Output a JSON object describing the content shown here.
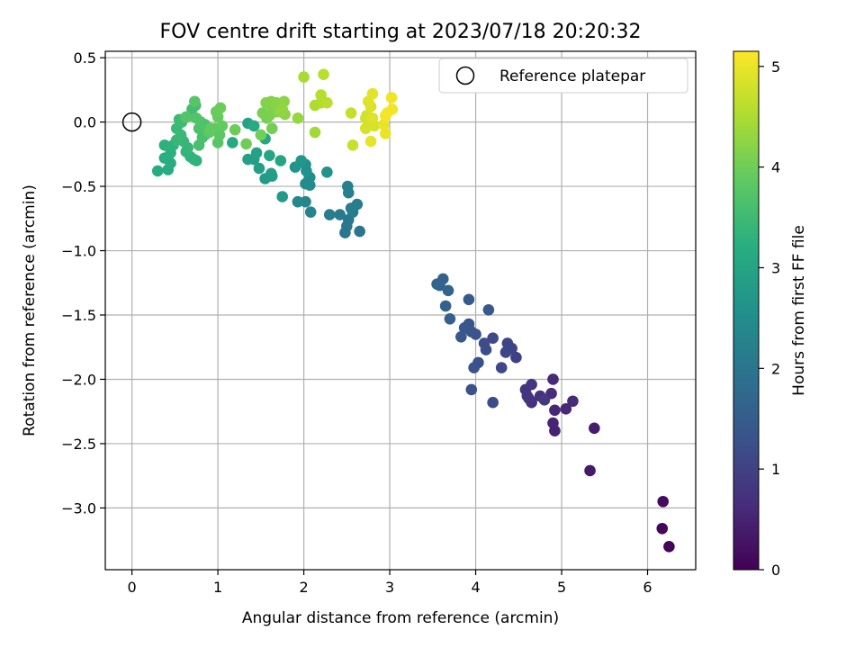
{
  "chart_data": {
    "type": "scatter",
    "title": "FOV centre drift starting at 2023/07/18 20:20:32",
    "xlabel": "Angular distance from reference (arcmin)",
    "ylabel": "Rotation from reference (arcmin)",
    "xlim": [
      -0.31,
      6.56
    ],
    "ylim": [
      -3.48,
      0.55
    ],
    "xticks": [
      0,
      1,
      2,
      3,
      4,
      5,
      6
    ],
    "xtick_labels": [
      "0",
      "1",
      "2",
      "3",
      "4",
      "5",
      "6"
    ],
    "yticks": [
      0.5,
      0.0,
      -0.5,
      -1.0,
      -1.5,
      -2.0,
      -2.5,
      -3.0
    ],
    "ytick_labels": [
      "0.5",
      "0.0",
      "−0.5",
      "−1.0",
      "−1.5",
      "−2.0",
      "−2.5",
      "−3.0"
    ],
    "grid": true,
    "legend": {
      "position": "top-right",
      "entries": [
        {
          "label": "Reference platepar",
          "marker": "open-circle",
          "x": 0,
          "y": 0
        }
      ]
    },
    "colorbar": {
      "label": "Hours from first FF file",
      "colormap": "viridis",
      "range": [
        0,
        5.15
      ],
      "ticks": [
        0,
        1,
        2,
        3,
        4,
        5
      ],
      "tick_labels": [
        "0",
        "1",
        "2",
        "3",
        "4",
        "5"
      ]
    },
    "points": [
      [
        6.25,
        -3.3,
        0.05
      ],
      [
        6.17,
        -3.16,
        0.1
      ],
      [
        6.18,
        -2.95,
        0.14
      ],
      [
        5.33,
        -2.71,
        0.35
      ],
      [
        5.38,
        -2.38,
        0.4
      ],
      [
        4.92,
        -2.4,
        0.5
      ],
      [
        4.9,
        -2.34,
        0.52
      ],
      [
        4.92,
        -2.24,
        0.55
      ],
      [
        5.05,
        -2.23,
        0.58
      ],
      [
        5.13,
        -2.17,
        0.6
      ],
      [
        4.9,
        -2.0,
        0.62
      ],
      [
        4.88,
        -2.11,
        0.66
      ],
      [
        4.75,
        -2.13,
        0.7
      ],
      [
        4.65,
        -2.18,
        0.72
      ],
      [
        4.62,
        -2.15,
        0.74
      ],
      [
        4.6,
        -2.13,
        0.76
      ],
      [
        4.58,
        -2.08,
        0.78
      ],
      [
        4.65,
        -2.04,
        0.8
      ],
      [
        4.8,
        -2.16,
        0.83
      ],
      [
        4.47,
        -1.83,
        1.0
      ],
      [
        4.42,
        -1.76,
        1.05
      ],
      [
        4.37,
        -1.72,
        1.08
      ],
      [
        4.35,
        -1.79,
        1.1
      ],
      [
        4.3,
        -1.91,
        1.12
      ],
      [
        4.2,
        -1.68,
        1.15
      ],
      [
        4.2,
        -2.18,
        1.18
      ],
      [
        4.1,
        -1.72,
        1.2
      ],
      [
        4.12,
        -1.77,
        1.22
      ],
      [
        4.03,
        -1.87,
        1.25
      ],
      [
        3.98,
        -1.91,
        1.28
      ],
      [
        3.95,
        -2.08,
        1.3
      ],
      [
        4.0,
        -1.65,
        1.32
      ],
      [
        3.95,
        -1.63,
        1.34
      ],
      [
        3.92,
        -1.57,
        1.36
      ],
      [
        3.87,
        -1.6,
        1.38
      ],
      [
        3.83,
        -1.67,
        1.4
      ],
      [
        4.15,
        -1.46,
        1.42
      ],
      [
        3.92,
        -1.38,
        1.45
      ],
      [
        3.7,
        -1.53,
        1.55
      ],
      [
        3.65,
        -1.43,
        1.58
      ],
      [
        3.62,
        -1.22,
        1.6
      ],
      [
        3.58,
        -1.27,
        1.62
      ],
      [
        3.55,
        -1.26,
        1.64
      ],
      [
        3.68,
        -1.31,
        1.66
      ],
      [
        2.65,
        -0.85,
        1.95
      ],
      [
        2.48,
        -0.86,
        2.0
      ],
      [
        2.5,
        -0.81,
        2.03
      ],
      [
        2.52,
        -0.76,
        2.06
      ],
      [
        2.42,
        -0.72,
        2.1
      ],
      [
        2.3,
        -0.72,
        2.12
      ],
      [
        2.57,
        -0.7,
        2.14
      ],
      [
        2.62,
        -0.64,
        2.16
      ],
      [
        2.55,
        -0.67,
        2.18
      ],
      [
        2.52,
        -0.55,
        2.2
      ],
      [
        2.51,
        -0.5,
        2.22
      ],
      [
        2.08,
        -0.7,
        2.3
      ],
      [
        2.02,
        -0.62,
        2.35
      ],
      [
        1.93,
        -0.62,
        2.4
      ],
      [
        2.07,
        -0.49,
        2.45
      ],
      [
        2.02,
        -0.48,
        2.48
      ],
      [
        2.07,
        -0.43,
        2.5
      ],
      [
        2.02,
        -0.33,
        2.55
      ],
      [
        2.03,
        -0.38,
        2.58
      ],
      [
        2.27,
        -0.39,
        2.6
      ],
      [
        1.9,
        -0.35,
        2.65
      ],
      [
        1.97,
        -0.3,
        2.68
      ],
      [
        1.75,
        -0.58,
        2.75
      ],
      [
        1.55,
        -0.44,
        2.8
      ],
      [
        1.63,
        -0.42,
        2.82
      ],
      [
        1.62,
        -0.4,
        2.84
      ],
      [
        1.48,
        -0.36,
        2.86
      ],
      [
        1.42,
        -0.29,
        2.88
      ],
      [
        1.35,
        -0.29,
        2.9
      ],
      [
        1.45,
        -0.24,
        2.92
      ],
      [
        1.35,
        -0.01,
        2.95
      ],
      [
        1.73,
        -0.3,
        3.0
      ],
      [
        1.6,
        -0.26,
        3.02
      ],
      [
        1.55,
        -0.13,
        3.05
      ],
      [
        1.17,
        -0.16,
        3.08
      ],
      [
        1.42,
        -0.03,
        3.1
      ],
      [
        0.3,
        -0.38,
        3.15
      ],
      [
        0.42,
        -0.37,
        3.18
      ],
      [
        0.45,
        -0.32,
        3.2
      ],
      [
        0.38,
        -0.28,
        3.22
      ],
      [
        0.45,
        -0.24,
        3.24
      ],
      [
        0.38,
        -0.18,
        3.26
      ],
      [
        0.48,
        -0.18,
        3.28
      ],
      [
        0.75,
        -0.3,
        3.3
      ],
      [
        0.72,
        -0.29,
        3.32
      ],
      [
        0.68,
        -0.27,
        3.34
      ],
      [
        0.63,
        -0.23,
        3.36
      ],
      [
        0.65,
        -0.2,
        3.38
      ],
      [
        0.6,
        -0.15,
        3.4
      ],
      [
        0.52,
        -0.14,
        3.42
      ],
      [
        0.57,
        -0.1,
        3.44
      ],
      [
        0.52,
        -0.05,
        3.46
      ],
      [
        0.55,
        0.02,
        3.48
      ],
      [
        0.58,
        0.0,
        3.5
      ],
      [
        0.68,
        0.05,
        3.52
      ],
      [
        0.7,
        0.1,
        3.54
      ],
      [
        0.74,
        0.13,
        3.56
      ],
      [
        0.78,
        -0.18,
        3.6
      ],
      [
        0.82,
        -0.12,
        3.62
      ],
      [
        0.85,
        -0.1,
        3.64
      ],
      [
        0.78,
        -0.05,
        3.66
      ],
      [
        0.85,
        -0.02,
        3.68
      ],
      [
        0.8,
        0.0,
        3.7
      ],
      [
        0.75,
        0.03,
        3.72
      ],
      [
        0.63,
        0.04,
        3.74
      ],
      [
        0.73,
        0.16,
        3.76
      ],
      [
        1.0,
        -0.16,
        3.8
      ],
      [
        1.02,
        -0.1,
        3.82
      ],
      [
        0.97,
        -0.05,
        3.84
      ],
      [
        0.9,
        -0.08,
        3.86
      ],
      [
        0.92,
        -0.05,
        3.88
      ],
      [
        1.05,
        -0.03,
        3.9
      ],
      [
        1.0,
        0.04,
        3.92
      ],
      [
        0.98,
        0.08,
        3.94
      ],
      [
        1.03,
        0.11,
        3.96
      ],
      [
        1.2,
        -0.06,
        3.98
      ],
      [
        1.33,
        -0.17,
        4.0
      ],
      [
        1.5,
        -0.1,
        4.02
      ],
      [
        1.63,
        -0.05,
        4.04
      ],
      [
        1.57,
        0.03,
        4.06
      ],
      [
        1.52,
        0.07,
        4.08
      ],
      [
        1.6,
        0.05,
        4.1
      ],
      [
        1.68,
        0.08,
        4.12
      ],
      [
        1.63,
        0.12,
        4.14
      ],
      [
        1.56,
        0.15,
        4.16
      ],
      [
        1.62,
        0.16,
        4.18
      ],
      [
        1.68,
        0.15,
        4.2
      ],
      [
        1.77,
        0.16,
        4.22
      ],
      [
        1.78,
        0.06,
        4.24
      ],
      [
        1.72,
        0.08,
        4.26
      ],
      [
        1.75,
        0.1,
        4.28
      ],
      [
        1.93,
        0.03,
        4.32
      ],
      [
        2.13,
        -0.08,
        4.4
      ],
      [
        2.13,
        0.13,
        4.5
      ],
      [
        2.2,
        0.15,
        4.55
      ],
      [
        2.2,
        0.21,
        4.58
      ],
      [
        2.27,
        0.15,
        4.62
      ],
      [
        2.0,
        0.35,
        4.45
      ],
      [
        2.23,
        0.37,
        4.6
      ],
      [
        2.55,
        0.07,
        4.7
      ],
      [
        2.57,
        -0.18,
        4.72
      ],
      [
        2.72,
        0.03,
        4.78
      ],
      [
        2.73,
        0.05,
        4.8
      ],
      [
        2.75,
        0.0,
        4.82
      ],
      [
        2.72,
        -0.05,
        4.84
      ],
      [
        2.82,
        -0.03,
        4.86
      ],
      [
        2.78,
        0.12,
        4.88
      ],
      [
        2.8,
        0.03,
        4.9
      ],
      [
        2.75,
        0.16,
        4.92
      ],
      [
        2.8,
        0.22,
        4.94
      ],
      [
        2.78,
        -0.15,
        4.96
      ],
      [
        2.93,
        -0.02,
        4.98
      ],
      [
        2.95,
        -0.09,
        5.0
      ],
      [
        2.97,
        0.07,
        5.02
      ],
      [
        3.02,
        0.19,
        5.04
      ],
      [
        3.03,
        0.1,
        5.06
      ],
      [
        2.95,
        0.05,
        5.08
      ]
    ]
  }
}
